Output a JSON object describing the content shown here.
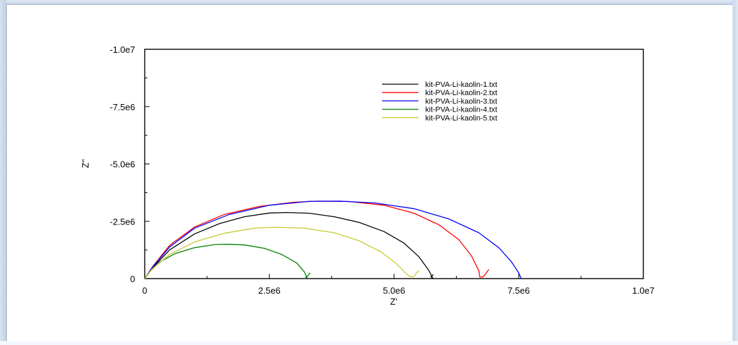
{
  "chart_data": {
    "type": "line",
    "title": "",
    "xlabel": "Z'",
    "ylabel": "Z''",
    "xlim": [
      0,
      10000000
    ],
    "ylim": [
      0,
      -10000000
    ],
    "x_ticks": [
      "0",
      "2.5e6",
      "5.0e6",
      "7.5e6",
      "1.0e7"
    ],
    "y_ticks": [
      "0",
      "-2.5e6",
      "-5.0e6",
      "-7.5e6",
      "-1.0e7"
    ],
    "x_tick_values": [
      0,
      2500000,
      5000000,
      7500000,
      10000000
    ],
    "y_tick_values": [
      0,
      -2500000,
      -5000000,
      -7500000,
      -10000000
    ],
    "legend_position": "top-right",
    "grid": false,
    "series": [
      {
        "name": "kit-PVA-Li-kaolin-1.txt",
        "color": "#000000",
        "x": [
          0,
          150000,
          500000,
          1000000,
          1500000,
          2000000,
          2500000,
          2850000,
          3300000,
          3800000,
          4300000,
          4800000,
          5200000,
          5500000,
          5700000,
          5780000,
          5740000,
          5760000,
          5790000
        ],
        "y": [
          0,
          -450000,
          -1250000,
          -1950000,
          -2400000,
          -2700000,
          -2860000,
          -2880000,
          -2850000,
          -2700000,
          -2450000,
          -2050000,
          -1550000,
          -950000,
          -350000,
          0,
          -80000,
          -120000,
          -180000
        ]
      },
      {
        "name": "kit-PVA-Li-kaolin-2.txt",
        "color": "#ff0000",
        "x": [
          0,
          150000,
          500000,
          1000000,
          1600000,
          2300000,
          3000000,
          3500000,
          4100000,
          4800000,
          5400000,
          5900000,
          6300000,
          6550000,
          6700000,
          6720000,
          6780000,
          6830000,
          6900000
        ],
        "y": [
          0,
          -500000,
          -1450000,
          -2250000,
          -2800000,
          -3150000,
          -3330000,
          -3380000,
          -3360000,
          -3200000,
          -2850000,
          -2350000,
          -1700000,
          -1000000,
          -350000,
          -70000,
          -70000,
          -180000,
          -400000
        ]
      },
      {
        "name": "kit-PVA-Li-kaolin-3.txt",
        "color": "#0000ff",
        "x": [
          0,
          150000,
          500000,
          1000000,
          1700000,
          2500000,
          3300000,
          3900000,
          4600000,
          5400000,
          6100000,
          6700000,
          7100000,
          7350000,
          7500000,
          7550000
        ],
        "y": [
          0,
          -480000,
          -1380000,
          -2200000,
          -2800000,
          -3200000,
          -3370000,
          -3380000,
          -3300000,
          -3050000,
          -2600000,
          -2000000,
          -1350000,
          -750000,
          -250000,
          0
        ]
      },
      {
        "name": "kit-PVA-Li-kaolin-4.txt",
        "color": "#008000",
        "x": [
          0,
          100000,
          300000,
          600000,
          1000000,
          1400000,
          1650000,
          2000000,
          2400000,
          2750000,
          3050000,
          3200000,
          3260000,
          3230000,
          3270000,
          3320000
        ],
        "y": [
          0,
          -300000,
          -720000,
          -1080000,
          -1350000,
          -1480000,
          -1500000,
          -1470000,
          -1320000,
          -1050000,
          -680000,
          -300000,
          -20000,
          -50000,
          -120000,
          -250000
        ]
      },
      {
        "name": "kit-PVA-Li-kaolin-5.txt",
        "color": "#c8c832",
        "x": [
          0,
          150000,
          500000,
          1000000,
          1600000,
          2200000,
          2600000,
          3200000,
          3800000,
          4300000,
          4750000,
          5050000,
          5250000,
          5320000,
          5400000,
          5450000,
          5500000
        ],
        "y": [
          0,
          -420000,
          -1050000,
          -1600000,
          -1980000,
          -2200000,
          -2240000,
          -2200000,
          -2000000,
          -1650000,
          -1150000,
          -650000,
          -200000,
          -80000,
          -90000,
          -250000,
          -350000
        ]
      }
    ]
  }
}
